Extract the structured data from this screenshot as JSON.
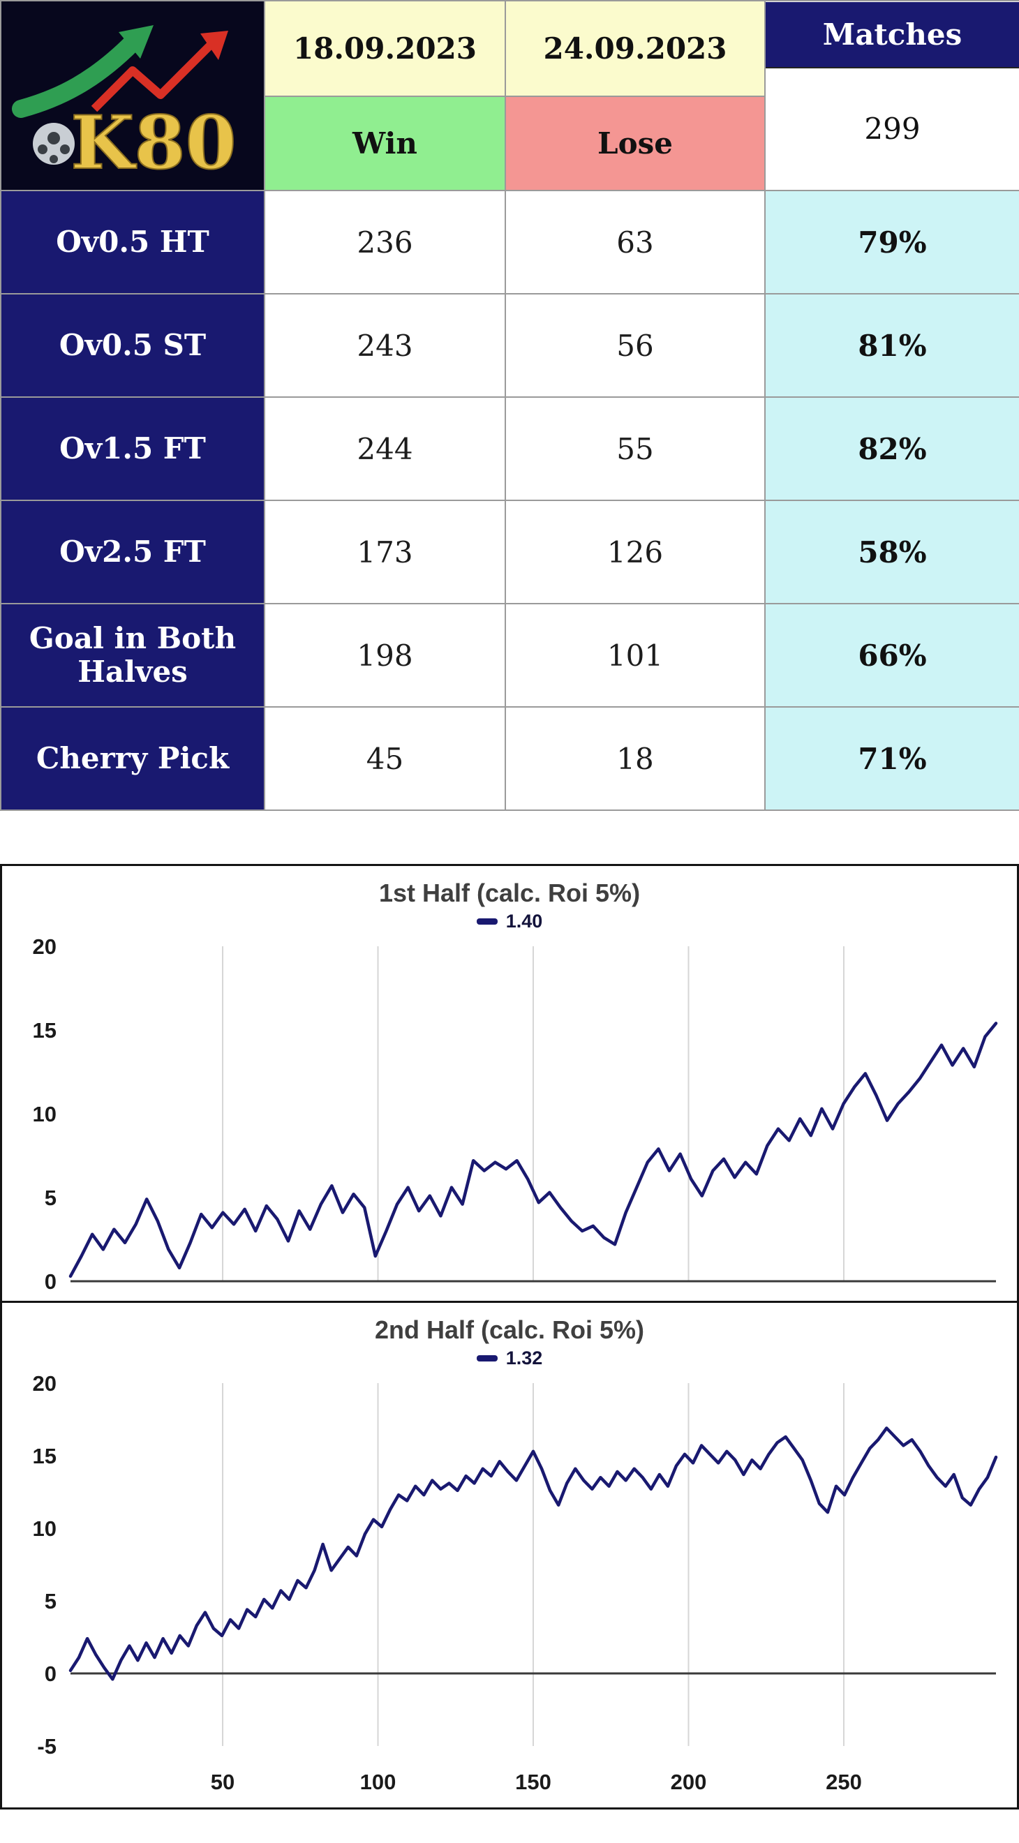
{
  "colors": {
    "navy": "#191970",
    "logo_bg": "#07071d",
    "date_bg": "#fbfbcd",
    "win_bg": "#90ee90",
    "lose_bg": "#f49693",
    "pct_bg": "#cdf4f6",
    "line": "#191970",
    "grid": "#d6d6d6"
  },
  "table": {
    "logo_text": "K80",
    "dates": [
      "18.09.2023",
      "24.09.2023"
    ],
    "matches_label": "Matches",
    "matches_count": "299",
    "win_label": "Win",
    "lose_label": "Lose",
    "rows": [
      {
        "label": "Ov0.5 HT",
        "win": "236",
        "lose": "63",
        "pct": "79%"
      },
      {
        "label": "Ov0.5 ST",
        "win": "243",
        "lose": "56",
        "pct": "81%"
      },
      {
        "label": "Ov1.5 FT",
        "win": "244",
        "lose": "55",
        "pct": "82%"
      },
      {
        "label": "Ov2.5 FT",
        "win": "173",
        "lose": "126",
        "pct": "58%"
      },
      {
        "label": "Goal in Both Halves",
        "win": "198",
        "lose": "101",
        "pct": "66%"
      },
      {
        "label": "Cherry Pick",
        "win": "45",
        "lose": "18",
        "pct": "71%"
      }
    ]
  },
  "chart_data": [
    {
      "type": "line",
      "title": "1st Half (calc. Roi 5%)",
      "legend": "1.40",
      "x_range": [
        1,
        299
      ],
      "ylim": [
        0,
        20
      ],
      "yticks": [
        0,
        5,
        10,
        15,
        20
      ],
      "xticks": [
        50,
        100,
        150,
        200,
        250
      ],
      "show_x_labels": false,
      "line_color": "#191970",
      "values": [
        0.3,
        1.5,
        2.8,
        1.9,
        3.1,
        2.3,
        3.4,
        4.9,
        3.6,
        1.9,
        0.8,
        2.3,
        4.0,
        3.2,
        4.1,
        3.4,
        4.3,
        3.0,
        4.5,
        3.7,
        2.4,
        4.2,
        3.1,
        4.6,
        5.7,
        4.1,
        5.2,
        4.4,
        1.5,
        3.0,
        4.6,
        5.6,
        4.2,
        5.1,
        3.9,
        5.6,
        4.6,
        7.2,
        6.6,
        7.1,
        6.7,
        7.2,
        6.1,
        4.7,
        5.3,
        4.4,
        3.6,
        3.0,
        3.3,
        2.6,
        2.2,
        4.1,
        5.6,
        7.1,
        7.9,
        6.6,
        7.6,
        6.1,
        5.1,
        6.6,
        7.3,
        6.2,
        7.1,
        6.4,
        8.1,
        9.1,
        8.4,
        9.7,
        8.7,
        10.3,
        9.1,
        10.6,
        11.6,
        12.4,
        11.1,
        9.6,
        10.6,
        11.3,
        12.1,
        13.1,
        14.1,
        12.9,
        13.9,
        12.8,
        14.6,
        15.4
      ]
    },
    {
      "type": "line",
      "title": "2nd Half (calc. Roi 5%)",
      "legend": "1.32",
      "x_range": [
        1,
        299
      ],
      "ylim": [
        -5,
        20
      ],
      "yticks": [
        -5,
        0,
        5,
        10,
        15,
        20
      ],
      "xticks": [
        50,
        100,
        150,
        200,
        250
      ],
      "show_x_labels": true,
      "line_color": "#191970",
      "values": [
        0.2,
        1.1,
        2.4,
        1.3,
        0.4,
        -0.4,
        0.9,
        1.9,
        0.9,
        2.1,
        1.1,
        2.4,
        1.4,
        2.6,
        1.9,
        3.3,
        4.2,
        3.1,
        2.6,
        3.7,
        3.1,
        4.4,
        3.9,
        5.1,
        4.5,
        5.7,
        5.1,
        6.4,
        5.9,
        7.1,
        8.9,
        7.1,
        7.9,
        8.7,
        8.1,
        9.6,
        10.6,
        10.1,
        11.3,
        12.3,
        11.9,
        12.9,
        12.3,
        13.3,
        12.7,
        13.1,
        12.6,
        13.6,
        13.1,
        14.1,
        13.6,
        14.6,
        13.9,
        13.3,
        14.3,
        15.3,
        14.1,
        12.6,
        11.6,
        13.1,
        14.1,
        13.3,
        12.7,
        13.5,
        12.9,
        13.9,
        13.3,
        14.1,
        13.5,
        12.7,
        13.7,
        12.9,
        14.3,
        15.1,
        14.5,
        15.7,
        15.1,
        14.5,
        15.3,
        14.7,
        13.7,
        14.7,
        14.1,
        15.1,
        15.9,
        16.3,
        15.5,
        14.7,
        13.3,
        11.7,
        11.1,
        12.9,
        12.3,
        13.5,
        14.5,
        15.5,
        16.1,
        16.9,
        16.3,
        15.7,
        16.1,
        15.3,
        14.3,
        13.5,
        12.9,
        13.7,
        12.1,
        11.6,
        12.7,
        13.5,
        14.9
      ]
    }
  ]
}
